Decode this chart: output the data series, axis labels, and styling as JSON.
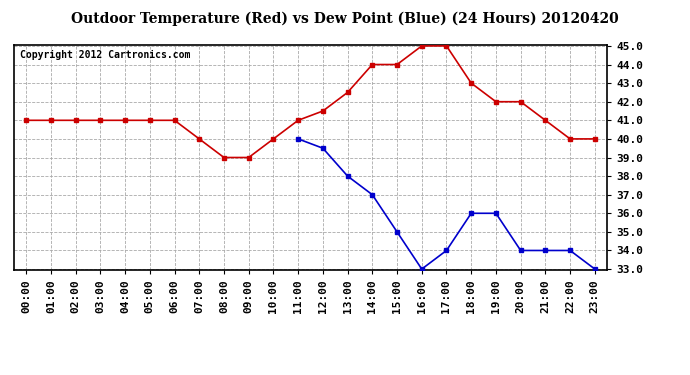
{
  "title": "Outdoor Temperature (Red) vs Dew Point (Blue) (24 Hours) 20120420",
  "copyright_text": "Copyright 2012 Cartronics.com",
  "hours": [
    0,
    1,
    2,
    3,
    4,
    5,
    6,
    7,
    8,
    9,
    10,
    11,
    12,
    13,
    14,
    15,
    16,
    17,
    18,
    19,
    20,
    21,
    22,
    23
  ],
  "temp_red": [
    41.0,
    41.0,
    41.0,
    41.0,
    41.0,
    41.0,
    41.0,
    40.0,
    39.0,
    39.0,
    40.0,
    41.0,
    41.5,
    42.5,
    44.0,
    44.0,
    45.0,
    45.0,
    43.0,
    42.0,
    42.0,
    41.0,
    40.0,
    40.0
  ],
  "dew_blue": [
    null,
    null,
    null,
    null,
    null,
    null,
    null,
    null,
    null,
    null,
    null,
    40.0,
    39.5,
    38.0,
    37.0,
    35.0,
    33.0,
    34.0,
    36.0,
    36.0,
    34.0,
    34.0,
    34.0,
    33.0
  ],
  "ylim": [
    33.0,
    45.0
  ],
  "yticks": [
    33.0,
    34.0,
    35.0,
    36.0,
    37.0,
    38.0,
    39.0,
    40.0,
    41.0,
    42.0,
    43.0,
    44.0,
    45.0
  ],
  "fig_bg_color": "#ffffff",
  "plot_bg_color": "#ffffff",
  "red_color": "#cc0000",
  "blue_color": "#0000cc",
  "grid_color": "#aaaaaa",
  "border_color": "#000000",
  "title_fontsize": 10,
  "copyright_fontsize": 7,
  "tick_fontsize": 8,
  "ytick_fontsize": 8
}
